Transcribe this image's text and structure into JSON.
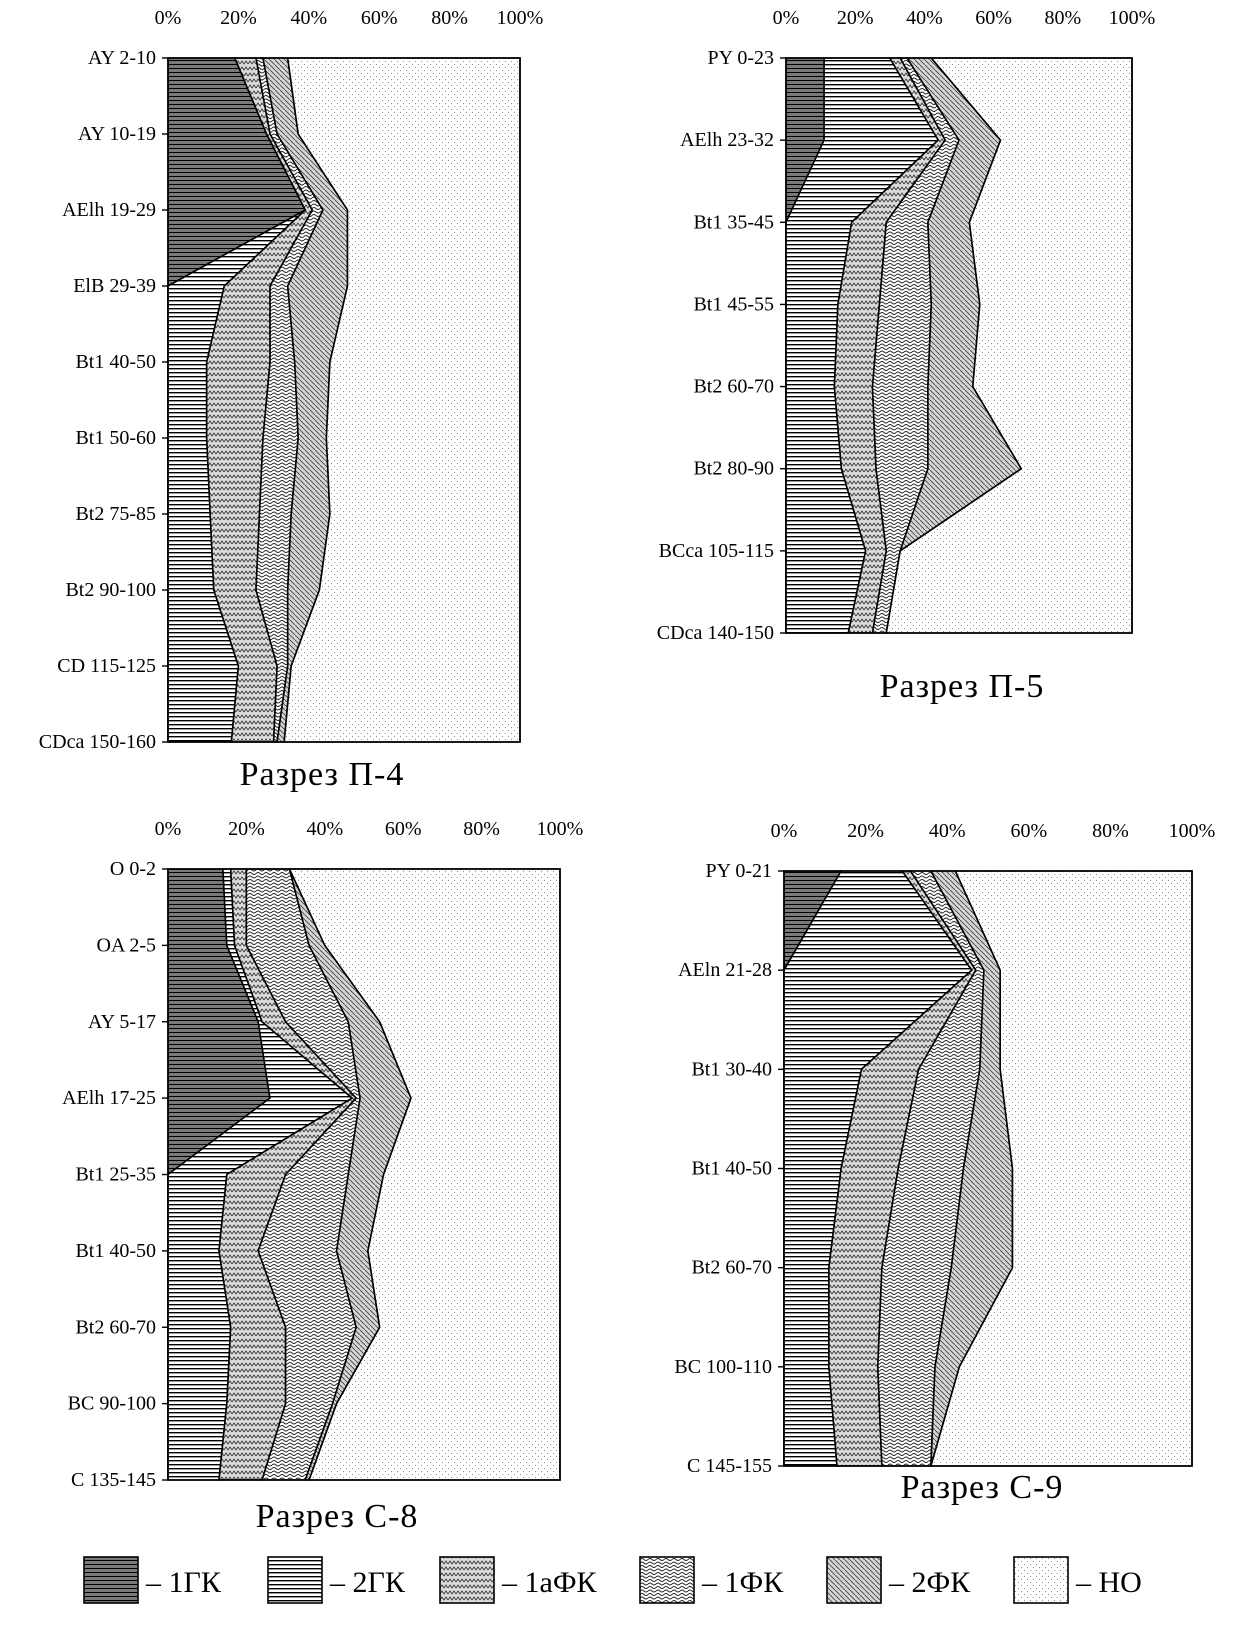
{
  "legend": [
    {
      "key": "1gk",
      "label": "– 1ГК"
    },
    {
      "key": "2gk",
      "label": "– 2ГК"
    },
    {
      "key": "1afk",
      "label": "– 1аФК"
    },
    {
      "key": "1fk",
      "label": "– 1ФК"
    },
    {
      "key": "2fk",
      "label": "– 2ФК"
    },
    {
      "key": "no",
      "label": "– НО"
    }
  ],
  "chart_data": [
    {
      "type": "area",
      "orientation": "horizontal-stacked-percent",
      "title": "Разрез П-4",
      "x_ticks": [
        "0%",
        "20%",
        "40%",
        "60%",
        "80%",
        "100%"
      ],
      "xlim": [
        0,
        100
      ],
      "x_axis_position": "top",
      "categories": [
        "AY 2-10",
        "AY 10-19",
        "AElh 19-29",
        "ElB 29-39",
        "Bt1 40-50",
        "Bt1 50-60",
        "Bt2 75-85",
        "Bt2 90-100",
        "CD 115-125",
        "CDca 150-160"
      ],
      "series": [
        {
          "name": "1ГК",
          "values": [
            19,
            28,
            39,
            0,
            0,
            0,
            0,
            0,
            0,
            0
          ]
        },
        {
          "name": "2ГК",
          "values": [
            0,
            0,
            0,
            16,
            11,
            11,
            12,
            13,
            20,
            18
          ]
        },
        {
          "name": "1аФК",
          "values": [
            6,
            1,
            2,
            13,
            18,
            16,
            14,
            12,
            11,
            12
          ]
        },
        {
          "name": "1ФК",
          "values": [
            2,
            2,
            3,
            5,
            7,
            10,
            9,
            9,
            3,
            1
          ]
        },
        {
          "name": "2ФК",
          "values": [
            7,
            6,
            7,
            17,
            10,
            8,
            11,
            9,
            1,
            2
          ]
        },
        {
          "name": "НО",
          "values": [
            66,
            63,
            49,
            49,
            54,
            55,
            54,
            57,
            65,
            67
          ]
        }
      ]
    },
    {
      "type": "area",
      "orientation": "horizontal-stacked-percent",
      "title": "Разрез П-5",
      "x_ticks": [
        "0%",
        "20%",
        "40%",
        "60%",
        "80%",
        "100%"
      ],
      "xlim": [
        0,
        100
      ],
      "x_axis_position": "top",
      "categories": [
        "PY 0-23",
        "AElh 23-32",
        "Bt1 35-45",
        "Bt1 45-55",
        "Bt2 60-70",
        "Bt2 80-90",
        "BCca 105-115",
        "CDca 140-150"
      ],
      "series": [
        {
          "name": "1ГК",
          "values": [
            11,
            11,
            0,
            0,
            0,
            0,
            0,
            0
          ]
        },
        {
          "name": "2ГК",
          "values": [
            19,
            33,
            19,
            15,
            14,
            16,
            23,
            18
          ]
        },
        {
          "name": "1аФК",
          "values": [
            3,
            2,
            10,
            12,
            11,
            10,
            6,
            7
          ]
        },
        {
          "name": "1ФК",
          "values": [
            2,
            4,
            12,
            15,
            16,
            15,
            4,
            4
          ]
        },
        {
          "name": "2ФК",
          "values": [
            7,
            12,
            12,
            14,
            13,
            27,
            0,
            0
          ]
        },
        {
          "name": "НО",
          "values": [
            58,
            38,
            47,
            44,
            46,
            32,
            67,
            71
          ]
        }
      ]
    },
    {
      "type": "area",
      "orientation": "horizontal-stacked-percent",
      "title": "Разрез С-8",
      "x_ticks": [
        "0%",
        "20%",
        "40%",
        "60%",
        "80%",
        "100%"
      ],
      "xlim": [
        0,
        100
      ],
      "x_axis_position": "top",
      "categories": [
        "O 0-2",
        "OA 2-5",
        "AY 5-17",
        "AElh 17-25",
        "Bt1 25-35",
        "Bt1 40-50",
        "Bt2 60-70",
        "BC 90-100",
        "C 135-145"
      ],
      "series": [
        {
          "name": "1ГК",
          "values": [
            14,
            15,
            23,
            26,
            0,
            0,
            0,
            0,
            0
          ]
        },
        {
          "name": "2ГК",
          "values": [
            2,
            2,
            1,
            21,
            15,
            13,
            16,
            15,
            13
          ]
        },
        {
          "name": "1аФК",
          "values": [
            4,
            3,
            6,
            1,
            15,
            10,
            14,
            15,
            11
          ]
        },
        {
          "name": "1ФК",
          "values": [
            11,
            16,
            16,
            1,
            16,
            20,
            18,
            12,
            11
          ]
        },
        {
          "name": "2ФК",
          "values": [
            0,
            4,
            8,
            13,
            9,
            8,
            6,
            1,
            1
          ]
        },
        {
          "name": "НО",
          "values": [
            69,
            60,
            46,
            38,
            45,
            49,
            46,
            57,
            64
          ]
        }
      ]
    },
    {
      "type": "area",
      "orientation": "horizontal-stacked-percent",
      "title": "Разрез С-9",
      "x_ticks": [
        "0%",
        "20%",
        "40%",
        "60%",
        "80%",
        "100%"
      ],
      "xlim": [
        0,
        100
      ],
      "x_axis_position": "top",
      "categories": [
        "PY 0-21",
        "AEln 21-28",
        "Bt1 30-40",
        "Bt1 40-50",
        "Bt2 60-70",
        "BC 100-110",
        "C 145-155"
      ],
      "series": [
        {
          "name": "1ГК",
          "values": [
            14,
            0,
            0,
            0,
            0,
            0,
            0
          ]
        },
        {
          "name": "2ГК",
          "values": [
            15,
            46,
            19,
            14,
            11,
            11,
            13
          ]
        },
        {
          "name": "1аФК",
          "values": [
            2,
            1,
            14,
            14,
            13,
            12,
            11
          ]
        },
        {
          "name": "1ФК",
          "values": [
            5,
            2,
            15,
            16,
            17,
            14,
            12
          ]
        },
        {
          "name": "2ФК",
          "values": [
            6,
            4,
            5,
            12,
            15,
            6,
            0
          ]
        },
        {
          "name": "НО",
          "values": [
            58,
            47,
            47,
            44,
            44,
            57,
            64
          ]
        }
      ]
    }
  ]
}
